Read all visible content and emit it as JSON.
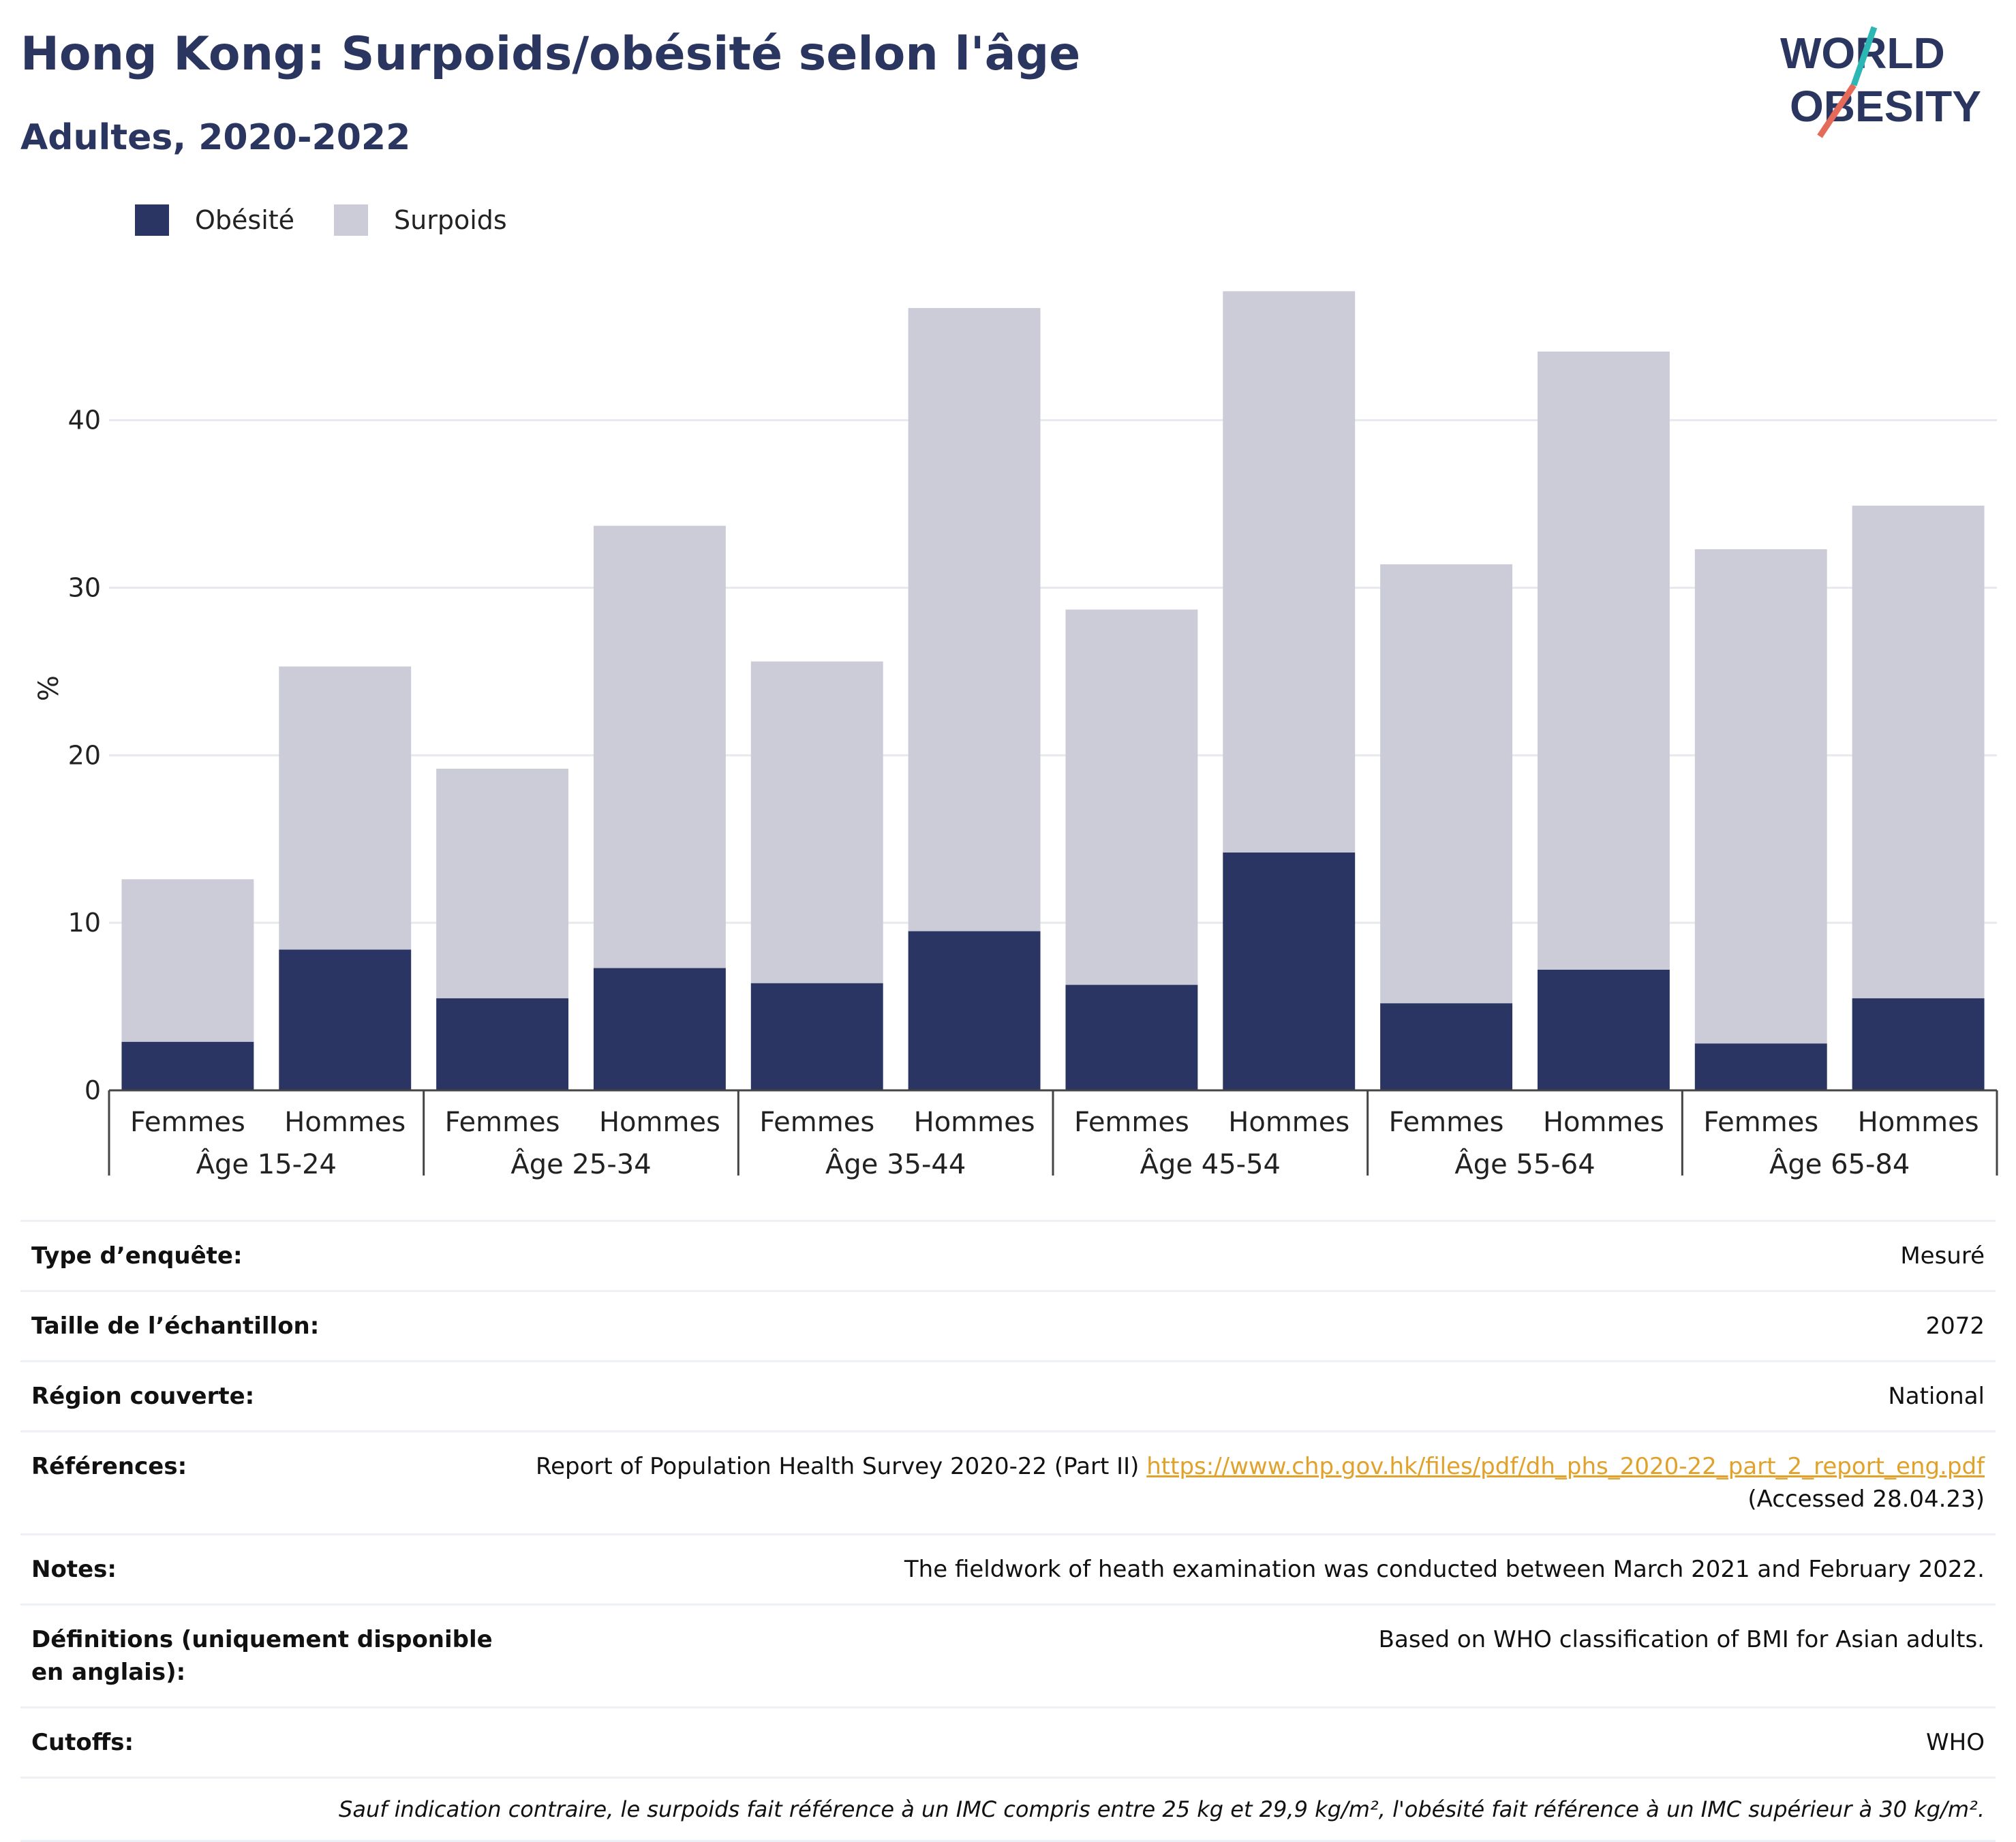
{
  "title": "Hong Kong: Surpoids/obésité selon l'âge",
  "subtitle": "Adultes, 2020-2022",
  "logo": {
    "line1": "WORLD",
    "line2": "OBESITY"
  },
  "legend": {
    "obesity": "Obésité",
    "overweight": "Surpoids"
  },
  "colors": {
    "obesity": "#2a3563",
    "overweight": "#cbccd8",
    "accent_teal": "#2bb7b3",
    "accent_red": "#e66a5a",
    "link": "#e0a22a"
  },
  "chart_data": {
    "type": "bar",
    "stacked": true,
    "ylabel": "%",
    "ylim": [
      0,
      48
    ],
    "yticks": [
      0,
      10,
      20,
      30,
      40
    ],
    "grid": true,
    "legend_position": "top-left",
    "groups": [
      "Âge 15-24",
      "Âge 25-34",
      "Âge 35-44",
      "Âge 45-54",
      "Âge 55-64",
      "Âge 65-84"
    ],
    "categories": [
      "Femmes",
      "Hommes",
      "Femmes",
      "Hommes",
      "Femmes",
      "Hommes",
      "Femmes",
      "Hommes",
      "Femmes",
      "Hommes",
      "Femmes",
      "Hommes"
    ],
    "series": [
      {
        "name": "Obésité",
        "values": [
          2.9,
          8.4,
          5.5,
          7.3,
          6.4,
          9.5,
          6.3,
          14.2,
          5.2,
          7.2,
          2.8,
          5.5
        ]
      },
      {
        "name": "Surpoids",
        "values": [
          9.7,
          16.9,
          13.7,
          26.4,
          19.2,
          37.2,
          22.4,
          33.5,
          26.2,
          36.9,
          29.5,
          29.4
        ]
      }
    ]
  },
  "info": {
    "survey_type": {
      "label": "Type d’enquête:",
      "value": "Mesuré"
    },
    "sample_size": {
      "label": "Taille de l’échantillon:",
      "value": "2072"
    },
    "region": {
      "label": "Région couverte:",
      "value": "National"
    },
    "references": {
      "label": "Références:",
      "text": "Report of Population Health Survey 2020-22 (Part II) ",
      "link": "https://www.chp.gov.hk/files/pdf/dh_phs_2020-22_part_2_report_eng.pdf",
      "accessed": "(Accessed 28.04.23)"
    },
    "notes": {
      "label": "Notes:",
      "value": "The fieldwork of heath examination was conducted between March 2021 and February 2022."
    },
    "definitions": {
      "label": "Définitions (uniquement disponible en anglais):",
      "value": "Based on WHO classification of BMI for Asian adults."
    },
    "cutoffs": {
      "label": "Cutoffs:",
      "value": "WHO"
    },
    "footnote": "Sauf indication contraire, le surpoids fait référence à un IMC compris entre 25 kg et 29,9 kg/m², l'obésité fait référence à un IMC supérieur à 30 kg/m²."
  }
}
